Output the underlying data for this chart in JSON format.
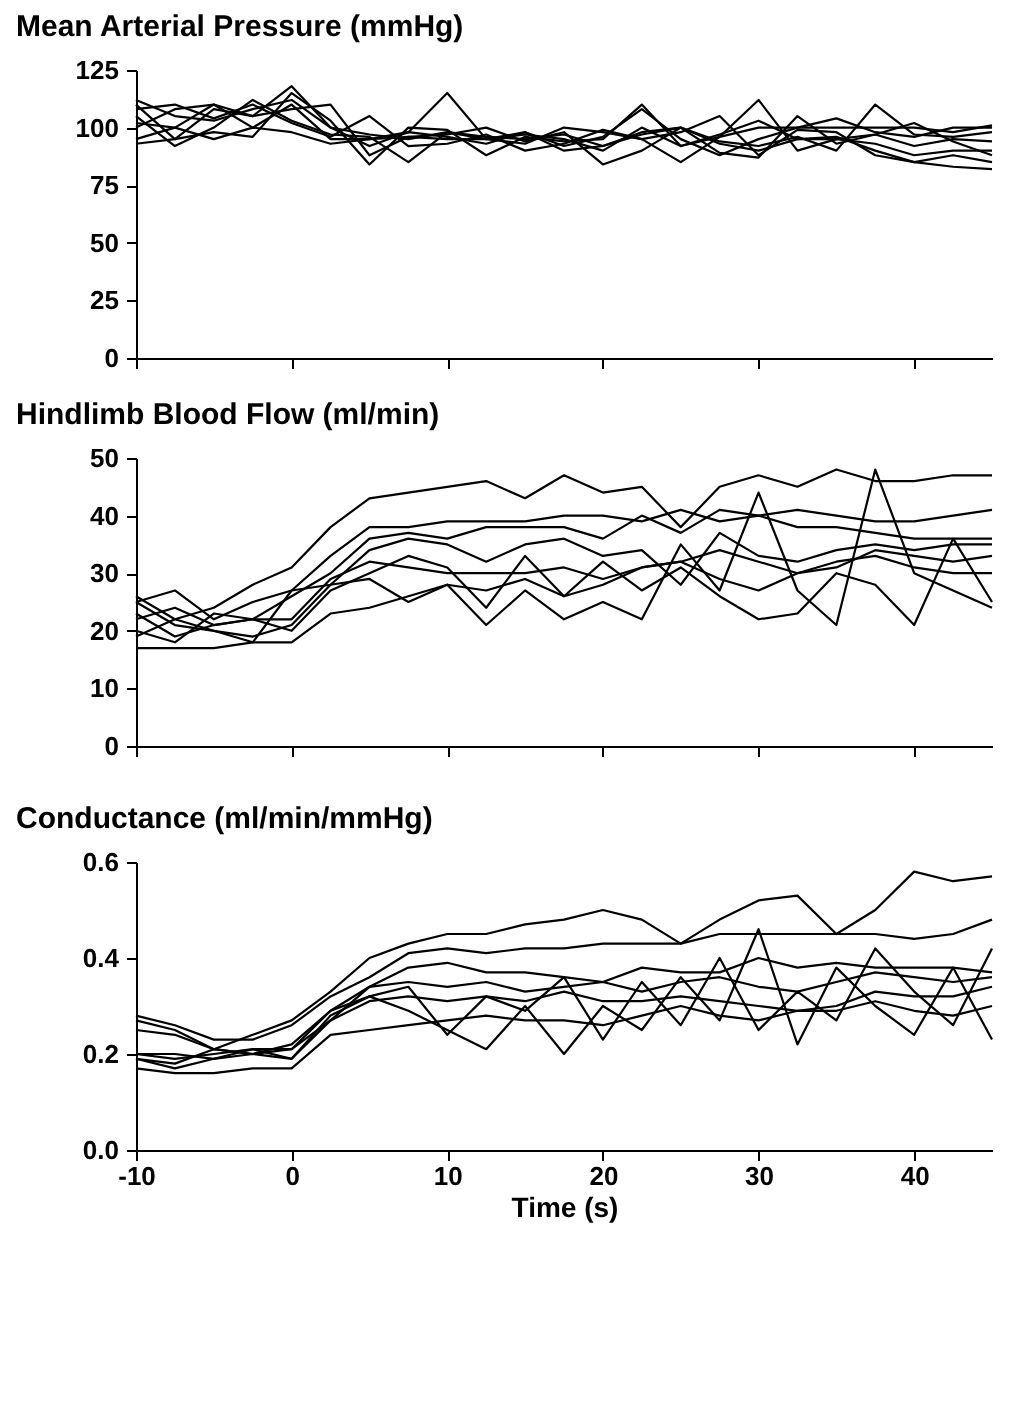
{
  "chart_data": [
    {
      "type": "line",
      "title": "Mean Arterial Pressure (mmHg)",
      "x": [
        -10,
        -7.5,
        -5,
        -2.5,
        0,
        2.5,
        5,
        7.5,
        10,
        12.5,
        15,
        17.5,
        20,
        22.5,
        25,
        27.5,
        30,
        32.5,
        35,
        37.5,
        40,
        42.5,
        45
      ],
      "xlim": [
        -10,
        45
      ],
      "xticks": [
        -10,
        0,
        10,
        20,
        30,
        40
      ],
      "ylim": [
        0,
        125
      ],
      "yticks": [
        0,
        25,
        50,
        75,
        100,
        125
      ],
      "tick_labels": "y",
      "series": [
        {
          "color": "#000000",
          "values": [
            112,
            105,
            103,
            108,
            112,
            100,
            97,
            95,
            98,
            96,
            95,
            97,
            92,
            98,
            100,
            93,
            90,
            95,
            96,
            90,
            85,
            83,
            82
          ]
        },
        {
          "color": "#000000",
          "values": [
            95,
            100,
            110,
            105,
            118,
            100,
            92,
            98,
            115,
            95,
            93,
            100,
            98,
            95,
            98,
            105,
            88,
            99,
            98,
            88,
            85,
            88,
            85
          ]
        },
        {
          "color": "#000000",
          "values": [
            105,
            92,
            100,
            112,
            103,
            97,
            96,
            85,
            98,
            95,
            97,
            95,
            90,
            100,
            92,
            97,
            103,
            95,
            95,
            97,
            92,
            95,
            94
          ]
        },
        {
          "color": "#000000",
          "values": [
            100,
            108,
            110,
            100,
            110,
            95,
            95,
            98,
            96,
            93,
            98,
            92,
            96,
            108,
            95,
            88,
            95,
            100,
            104,
            98,
            96,
            100,
            100
          ]
        },
        {
          "color": "#000000",
          "values": [
            93,
            95,
            108,
            105,
            108,
            110,
            88,
            96,
            97,
            100,
            94,
            98,
            84,
            90,
            100,
            94,
            92,
            96,
            90,
            110,
            97,
            96,
            98
          ]
        },
        {
          "color": "#000000",
          "values": [
            108,
            110,
            104,
            110,
            102,
            96,
            105,
            92,
            93,
            97,
            90,
            93,
            99,
            95,
            85,
            96,
            112,
            90,
            95,
            93,
            88,
            90,
            90
          ]
        },
        {
          "color": "#000000",
          "values": [
            110,
            95,
            98,
            96,
            115,
            103,
            84,
            100,
            99,
            88,
            96,
            94,
            95,
            110,
            92,
            96,
            100,
            100,
            100,
            100,
            100,
            98,
            101
          ]
        },
        {
          "color": "#000000",
          "values": [
            102,
            100,
            95,
            100,
            98,
            93,
            95,
            96,
            95,
            95,
            98,
            90,
            92,
            97,
            100,
            89,
            87,
            105,
            93,
            97,
            102,
            94,
            88
          ]
        }
      ]
    },
    {
      "type": "line",
      "title": "Hindlimb Blood Flow (ml/min)",
      "x": [
        -10,
        -7.5,
        -5,
        -2.5,
        0,
        2.5,
        5,
        7.5,
        10,
        12.5,
        15,
        17.5,
        20,
        22.5,
        25,
        27.5,
        30,
        32.5,
        35,
        37.5,
        40,
        42.5,
        45
      ],
      "xlim": [
        -10,
        45
      ],
      "xticks": [
        -10,
        0,
        10,
        20,
        30,
        40
      ],
      "ylim": [
        0,
        50
      ],
      "yticks": [
        0,
        10,
        20,
        30,
        40,
        50
      ],
      "tick_labels": "y",
      "series": [
        {
          "color": "#000000",
          "values": [
            26,
            22,
            24,
            28,
            31,
            38,
            43,
            44,
            45,
            46,
            43,
            47,
            44,
            45,
            38,
            45,
            47,
            45,
            48,
            46,
            46,
            47,
            47
          ]
        },
        {
          "color": "#000000",
          "values": [
            25,
            27,
            22,
            25,
            27,
            33,
            38,
            38,
            39,
            39,
            39,
            40,
            40,
            39,
            41,
            39,
            40,
            41,
            40,
            39,
            39,
            40,
            41
          ]
        },
        {
          "color": "#000000",
          "values": [
            23,
            19,
            21,
            22,
            26,
            30,
            36,
            37,
            36,
            38,
            38,
            38,
            36,
            40,
            37,
            41,
            40,
            38,
            38,
            37,
            36,
            36,
            36
          ]
        },
        {
          "color": "#000000",
          "values": [
            19,
            22,
            20,
            18,
            27,
            28,
            34,
            36,
            35,
            32,
            35,
            36,
            33,
            34,
            28,
            37,
            33,
            32,
            34,
            35,
            34,
            35,
            35
          ]
        },
        {
          "color": "#000000",
          "values": [
            22,
            24,
            21,
            22,
            22,
            29,
            32,
            31,
            30,
            30,
            30,
            31,
            29,
            31,
            32,
            34,
            32,
            30,
            31,
            34,
            33,
            32,
            33
          ]
        },
        {
          "color": "#000000",
          "values": [
            17,
            17,
            17,
            18,
            18,
            23,
            24,
            26,
            28,
            27,
            29,
            26,
            28,
            31,
            32,
            29,
            27,
            30,
            32,
            33,
            31,
            30,
            30
          ]
        },
        {
          "color": "#000000",
          "values": [
            25,
            21,
            20,
            19,
            21,
            28,
            29,
            25,
            28,
            21,
            27,
            22,
            25,
            22,
            35,
            27,
            44,
            27,
            21,
            48,
            30,
            27,
            24
          ]
        },
        {
          "color": "#000000",
          "values": [
            20,
            18,
            23,
            22,
            20,
            27,
            30,
            33,
            31,
            24,
            33,
            26,
            32,
            27,
            31,
            26,
            22,
            23,
            30,
            28,
            21,
            36,
            25
          ]
        }
      ]
    },
    {
      "type": "line",
      "title": "Conductance (ml/min/mmHg)",
      "xlabel": "Time (s)",
      "x": [
        -10,
        -7.5,
        -5,
        -2.5,
        0,
        2.5,
        5,
        7.5,
        10,
        12.5,
        15,
        17.5,
        20,
        22.5,
        25,
        27.5,
        30,
        32.5,
        35,
        37.5,
        40,
        42.5,
        45
      ],
      "xlim": [
        -10,
        45
      ],
      "xticks": [
        -10,
        0,
        10,
        20,
        30,
        40
      ],
      "ylim": [
        0,
        0.6
      ],
      "yticks": [
        {
          "value": 0,
          "label": "0.0"
        },
        0.2,
        0.4,
        0.6
      ],
      "series": [
        {
          "color": "#000000",
          "values": [
            0.27,
            0.25,
            0.21,
            0.24,
            0.27,
            0.33,
            0.4,
            0.43,
            0.45,
            0.45,
            0.47,
            0.48,
            0.5,
            0.48,
            0.43,
            0.48,
            0.52,
            0.53,
            0.45,
            0.5,
            0.58,
            0.56,
            0.57
          ]
        },
        {
          "color": "#000000",
          "values": [
            0.28,
            0.26,
            0.23,
            0.23,
            0.26,
            0.32,
            0.36,
            0.41,
            0.42,
            0.41,
            0.42,
            0.42,
            0.43,
            0.43,
            0.43,
            0.45,
            0.45,
            0.45,
            0.45,
            0.45,
            0.44,
            0.45,
            0.48
          ]
        },
        {
          "color": "#000000",
          "values": [
            0.25,
            0.24,
            0.21,
            0.2,
            0.22,
            0.29,
            0.34,
            0.38,
            0.39,
            0.37,
            0.37,
            0.36,
            0.35,
            0.38,
            0.37,
            0.37,
            0.4,
            0.38,
            0.39,
            0.38,
            0.38,
            0.38,
            0.37
          ]
        },
        {
          "color": "#000000",
          "values": [
            0.2,
            0.2,
            0.19,
            0.21,
            0.21,
            0.27,
            0.34,
            0.35,
            0.34,
            0.35,
            0.33,
            0.34,
            0.35,
            0.33,
            0.35,
            0.36,
            0.34,
            0.33,
            0.35,
            0.37,
            0.36,
            0.35,
            0.36
          ]
        },
        {
          "color": "#000000",
          "values": [
            0.19,
            0.17,
            0.19,
            0.2,
            0.19,
            0.27,
            0.31,
            0.32,
            0.31,
            0.32,
            0.31,
            0.33,
            0.31,
            0.31,
            0.32,
            0.31,
            0.3,
            0.29,
            0.3,
            0.33,
            0.32,
            0.32,
            0.34
          ]
        },
        {
          "color": "#000000",
          "values": [
            0.17,
            0.16,
            0.16,
            0.17,
            0.17,
            0.24,
            0.25,
            0.26,
            0.27,
            0.28,
            0.27,
            0.27,
            0.26,
            0.28,
            0.3,
            0.28,
            0.27,
            0.29,
            0.29,
            0.31,
            0.29,
            0.28,
            0.3
          ]
        },
        {
          "color": "#000000",
          "values": [
            0.2,
            0.19,
            0.2,
            0.21,
            0.19,
            0.28,
            0.32,
            0.29,
            0.25,
            0.21,
            0.3,
            0.2,
            0.3,
            0.25,
            0.36,
            0.27,
            0.46,
            0.22,
            0.38,
            0.3,
            0.24,
            0.38,
            0.23
          ]
        },
        {
          "color": "#000000",
          "values": [
            0.19,
            0.18,
            0.21,
            0.2,
            0.21,
            0.29,
            0.32,
            0.34,
            0.24,
            0.32,
            0.29,
            0.36,
            0.23,
            0.35,
            0.26,
            0.4,
            0.25,
            0.33,
            0.27,
            0.42,
            0.33,
            0.26,
            0.42
          ]
        }
      ]
    }
  ]
}
